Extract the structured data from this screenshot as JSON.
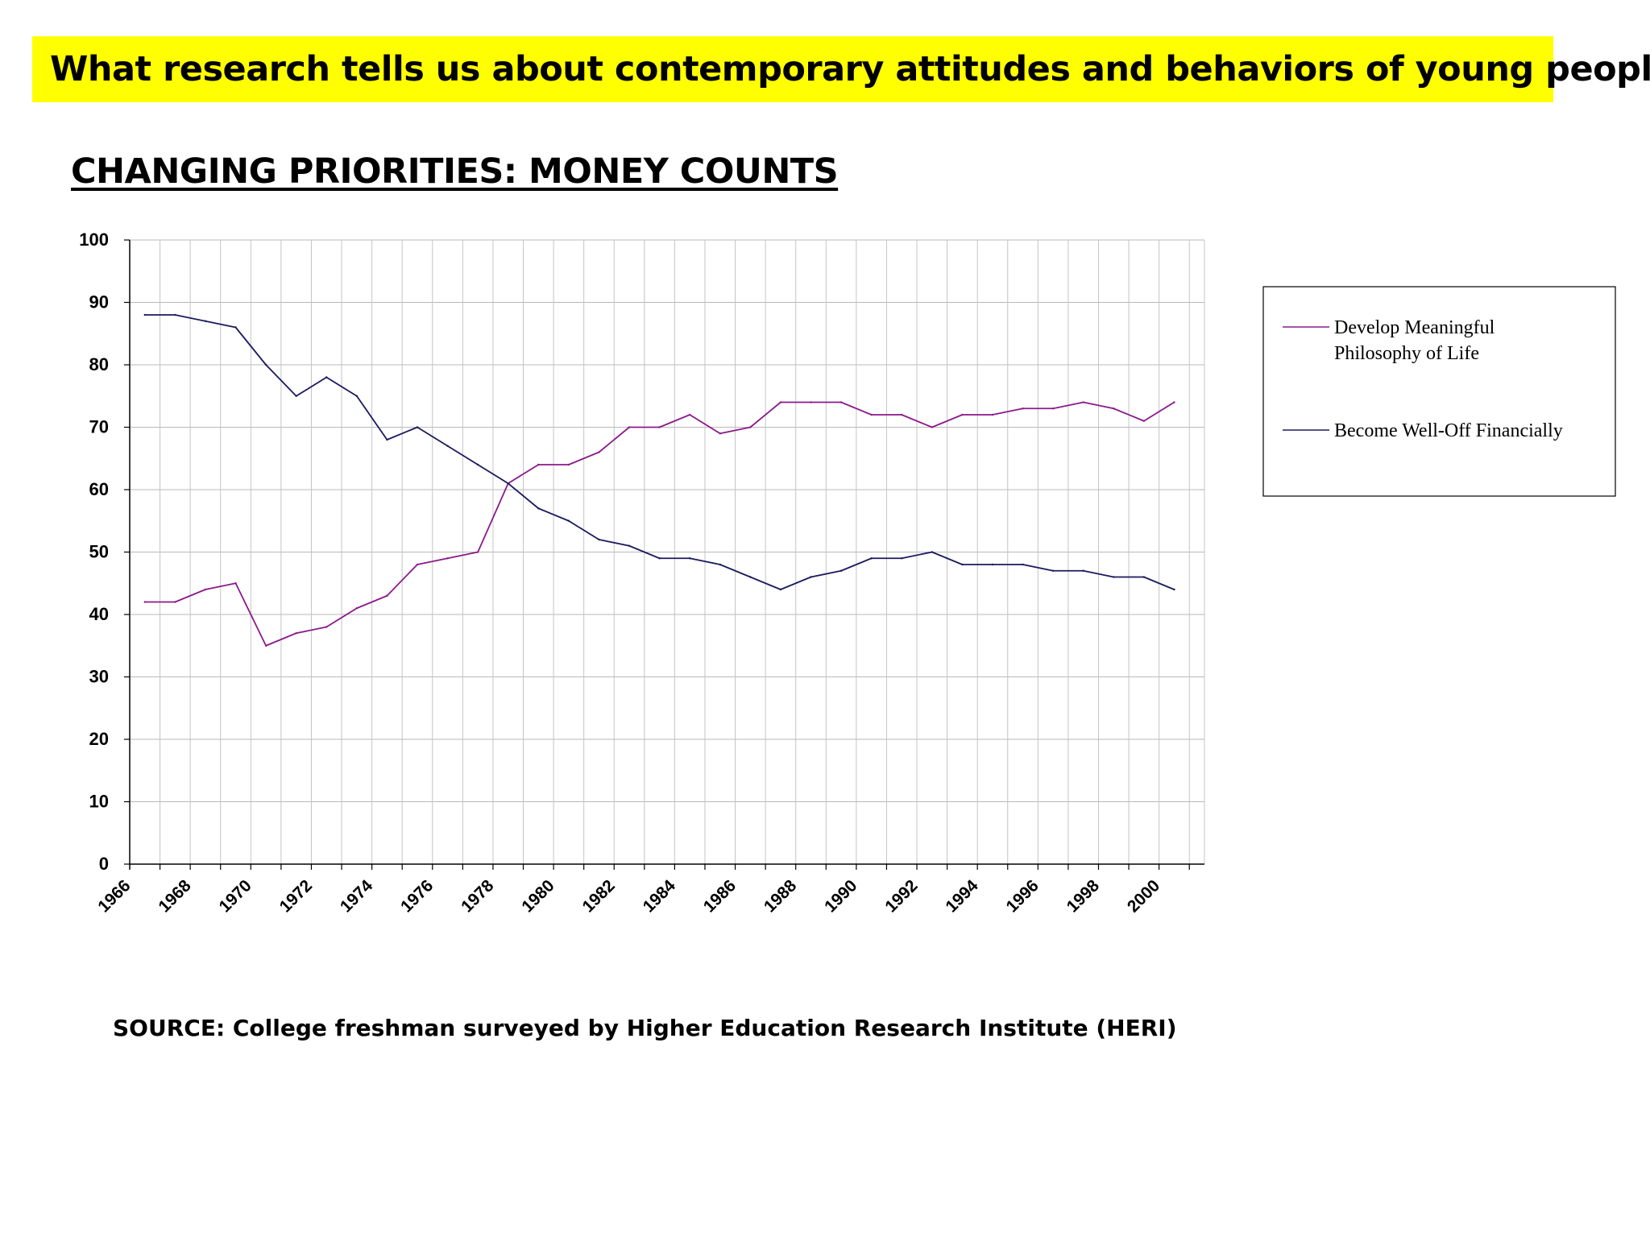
{
  "header": {
    "banner_text": "What research tells us about contemporary attitudes and behaviors of young people…",
    "banner_color": "#ffff00",
    "subtitle": "CHANGING PRIORITIES: MONEY COUNTS"
  },
  "footer": {
    "source": "SOURCE: College freshman surveyed by Higher Education Research Institute (HERI)"
  },
  "chart_data": {
    "type": "line",
    "title": "CHANGING PRIORITIES: MONEY COUNTS",
    "xlabel": "",
    "ylabel": "",
    "ylim": [
      0,
      100
    ],
    "yticks": [
      "0",
      "10",
      "20",
      "30",
      "40",
      "50",
      "60",
      "70",
      "80",
      "90",
      "100"
    ],
    "xticks": [
      "1966",
      "1968",
      "1970",
      "1972",
      "1974",
      "1976",
      "1978",
      "1980",
      "1982",
      "1984",
      "1986",
      "1988",
      "1990",
      "1992",
      "1994",
      "1996",
      "1998",
      "2000"
    ],
    "grid": true,
    "legend_position": "right",
    "x": [
      1966.5,
      1967.5,
      1968.5,
      1969.5,
      1970.5,
      1971.5,
      1972.5,
      1973.5,
      1974.5,
      1975.5,
      1976.5,
      1977.5,
      1978.5,
      1979.5,
      1980.5,
      1981.5,
      1982.5,
      1983.5,
      1984.5,
      1985.5,
      1986.5,
      1987.5,
      1988.5,
      1989.5,
      1990.5,
      1991.5,
      1992.5,
      1993.5,
      1994.5,
      1995.5,
      1996.5,
      1997.5,
      1998.5,
      1999.5,
      2000.5
    ],
    "series": [
      {
        "name": "Develop Meaningful Philosophy of Life",
        "legend_lines": [
          "Develop Meaningful",
          "Philosophy of Life"
        ],
        "color": "#8b1a8b",
        "values": [
          42,
          42,
          44,
          45,
          35,
          37,
          38,
          41,
          43,
          48,
          49,
          50,
          61,
          64,
          64,
          66,
          70,
          70,
          72,
          69,
          70,
          74,
          74,
          74,
          72,
          72,
          70,
          72,
          72,
          73,
          73,
          74,
          73,
          71,
          74
        ]
      },
      {
        "name": "Become Well-Off Financially",
        "legend_lines": [
          "Become Well-Off Financially"
        ],
        "color": "#1a1a5e",
        "values": [
          88,
          88,
          87,
          86,
          80,
          75,
          78,
          75,
          68,
          70,
          67,
          64,
          61,
          57,
          55,
          52,
          51,
          49,
          49,
          48,
          46,
          44,
          46,
          47,
          49,
          49,
          50,
          48,
          48,
          48,
          47,
          47,
          46,
          46,
          44
        ]
      }
    ]
  }
}
